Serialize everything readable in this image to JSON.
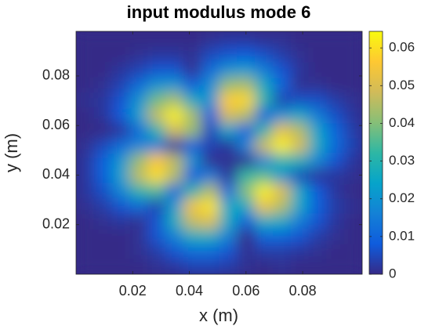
{
  "chart_data": {
    "type": "heatmap",
    "title": "input modulus mode 6",
    "xlabel": "x (m)",
    "ylabel": "y (m)",
    "xlim": [
      0,
      0.101
    ],
    "ylim": [
      0,
      0.098
    ],
    "xticks": [
      0.02,
      0.04,
      0.06,
      0.08
    ],
    "yticks": [
      0.02,
      0.04,
      0.06,
      0.08
    ],
    "clim": [
      0,
      0.0644
    ],
    "cticks": [
      0,
      0.01,
      0.02,
      0.03,
      0.04,
      0.05,
      0.06
    ],
    "colormap": [
      "#352a87",
      "#0f5cdd",
      "#1481d6",
      "#06a4ca",
      "#2eb7a4",
      "#87bf77",
      "#d1bb59",
      "#fec832",
      "#f9fb0e"
    ],
    "z": [
      [
        0,
        0,
        0,
        0,
        0.001,
        0.002,
        0.004,
        0.004,
        0.003,
        0.001,
        0,
        0.001,
        0,
        0,
        0,
        0
      ],
      [
        0,
        0,
        0,
        0.001,
        0.003,
        0.007,
        0.011,
        0.011,
        0.007,
        0.001,
        0.003,
        0.003,
        0.002,
        0.001,
        0,
        0
      ],
      [
        0,
        0,
        0,
        0.001,
        0.007,
        0.016,
        0.027,
        0.027,
        0.016,
        0,
        0.01,
        0.01,
        0.007,
        0.003,
        0.001,
        0
      ],
      [
        0,
        0.001,
        0.002,
        0.001,
        0.007,
        0.027,
        0.047,
        0.05,
        0.026,
        0.008,
        0.027,
        0.026,
        0.015,
        0.007,
        0.002,
        0
      ],
      [
        0.001,
        0.003,
        0.007,
        0.011,
        0.004,
        0.022,
        0.054,
        0.061,
        0.025,
        0.026,
        0.053,
        0.045,
        0.025,
        0.009,
        0.003,
        0.001
      ],
      [
        0.002,
        0.006,
        0.017,
        0.03,
        0.034,
        0.01,
        0.03,
        0.045,
        0.011,
        0.04,
        0.063,
        0.05,
        0.025,
        0.008,
        0.002,
        0
      ],
      [
        0.002,
        0.009,
        0.023,
        0.046,
        0.06,
        0.045,
        0.008,
        0.015,
        0.002,
        0.032,
        0.036,
        0.021,
        0.005,
        0.002,
        0.002,
        0.001
      ],
      [
        0.002,
        0.009,
        0.021,
        0.042,
        0.056,
        0.046,
        0.02,
        0.001,
        0.001,
        0.001,
        0.017,
        0.03,
        0.028,
        0.017,
        0.007,
        0.002
      ],
      [
        0.001,
        0.005,
        0.011,
        0.017,
        0.015,
        0.002,
        0.009,
        0.004,
        0.002,
        0.017,
        0.048,
        0.063,
        0.049,
        0.026,
        0.011,
        0.004
      ],
      [
        0,
        0,
        0.002,
        0.011,
        0.03,
        0.049,
        0.042,
        0.005,
        0.024,
        0.009,
        0.03,
        0.052,
        0.045,
        0.024,
        0.01,
        0.003
      ],
      [
        0,
        0.002,
        0.008,
        0.023,
        0.047,
        0.063,
        0.044,
        0.008,
        0.049,
        0.045,
        0.009,
        0.02,
        0.025,
        0.015,
        0.006,
        0.002
      ],
      [
        0.001,
        0.002,
        0.007,
        0.02,
        0.038,
        0.044,
        0.026,
        0.02,
        0.057,
        0.059,
        0.031,
        0.004,
        0.006,
        0.006,
        0.003,
        0.001
      ],
      [
        0,
        0.001,
        0.004,
        0.011,
        0.02,
        0.021,
        0.008,
        0.019,
        0.042,
        0.044,
        0.026,
        0.01,
        0.001,
        0.001,
        0,
        0
      ],
      [
        0,
        0,
        0.002,
        0.004,
        0.007,
        0.007,
        0.001,
        0.011,
        0.02,
        0.022,
        0.015,
        0.007,
        0.002,
        0,
        0,
        0
      ],
      [
        0,
        0,
        0,
        0.001,
        0.002,
        0.002,
        0.001,
        0.005,
        0.007,
        0.008,
        0.006,
        0.003,
        0.001,
        0,
        0,
        0
      ],
      [
        0,
        0,
        0,
        0,
        0,
        0,
        0,
        0.001,
        0.002,
        0.002,
        0.001,
        0.001,
        0,
        0,
        0,
        0
      ]
    ]
  }
}
